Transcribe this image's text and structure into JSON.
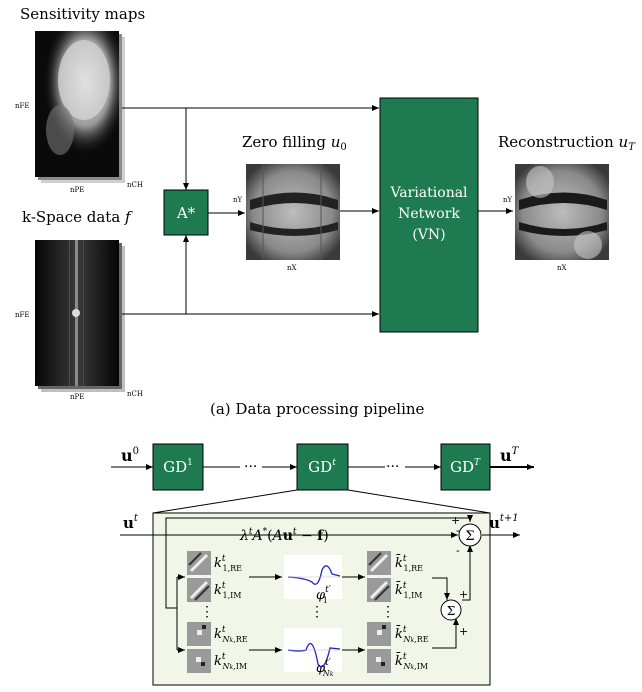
{
  "pipeline": {
    "sensitivity_maps_label": "Sensitivity maps",
    "kspace_label_text": "k-Space data ",
    "kspace_label_var": "f",
    "zero_filling_label_text": "Zero filling ",
    "zero_filling_label_var": "u",
    "zero_filling_label_sub": "0",
    "reconstruction_label_text": "Reconstruction ",
    "reconstruction_label_var": "u",
    "reconstruction_label_sub": "T",
    "operator_label": "A*",
    "vn_line1": "Variational",
    "vn_line2": "Network",
    "vn_line3": "(VN)",
    "axis_fe": "nFE",
    "axis_pe": "nPE",
    "axis_ch": "nCH",
    "axis_y": "nY",
    "axis_x": "nX",
    "caption": "(a) Data processing pipeline"
  },
  "gd_chain": {
    "input": "u0",
    "gd1": "GD1",
    "gdt": "GDt",
    "gdT": "GDT",
    "output": "uT",
    "dots": "···"
  },
  "gd_step": {
    "input": "ut",
    "output": "ut+1",
    "data_term": "λtA*(Aut − f)",
    "sum_symbol": "Σ",
    "plus": "+",
    "minus": "-",
    "filters": [
      "k1,REt",
      "k1,IMt",
      "kNk,REt",
      "kNk,IMt"
    ],
    "transposed_filters": [
      "k̄1,REt",
      "k̄1,IMt",
      "k̄Nk,REt",
      "k̄Nk,IMt"
    ],
    "activations": [
      "φ1t′",
      "φNkt′"
    ],
    "vdots": "⋮"
  },
  "colors": {
    "box_green": "#1e7a50",
    "panel_fill": "#f2f6e9",
    "curve_blue": "#2222cc"
  }
}
